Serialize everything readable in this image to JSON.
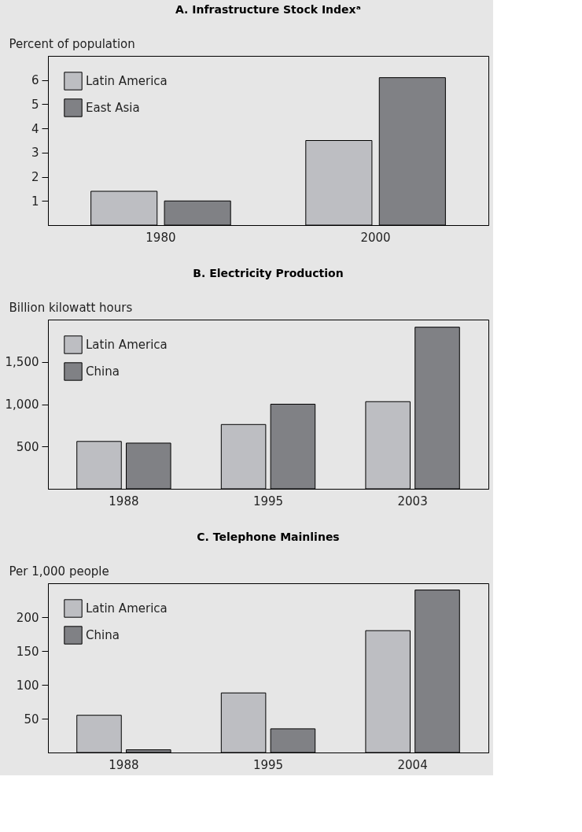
{
  "chart_data": [
    {
      "type": "bar",
      "title": "A. Infrastructure Stock Indexᵃ",
      "ylabel": "Percent of population",
      "categories": [
        "1980",
        "2000"
      ],
      "series": [
        {
          "name": "Latin America",
          "color": "#bdbec2",
          "values": [
            1.4,
            3.5
          ]
        },
        {
          "name": "East Asia",
          "color": "#808185",
          "values": [
            1.0,
            6.1
          ]
        }
      ],
      "ylim": [
        0,
        7
      ],
      "yticks": [
        1,
        2,
        3,
        4,
        5,
        6
      ],
      "legend": "top left",
      "grid": false
    },
    {
      "type": "bar",
      "title": "B. Electricity Production",
      "ylabel": "Billion kilowatt hours",
      "categories": [
        "1988",
        "1995",
        "2003"
      ],
      "series": [
        {
          "name": "Latin America",
          "color": "#bdbec2",
          "values": [
            560,
            760,
            1030
          ]
        },
        {
          "name": "China",
          "color": "#808185",
          "values": [
            540,
            1000,
            1910
          ]
        }
      ],
      "ylim": [
        0,
        2000
      ],
      "yticks": [
        {
          "value": 500,
          "label": "500"
        },
        {
          "value": 1000,
          "label": "1,000"
        },
        {
          "value": 1500,
          "label": "1,500"
        }
      ],
      "legend": "top left",
      "grid": false
    },
    {
      "type": "bar",
      "title": "C. Telephone Mainlines",
      "ylabel": "Per 1,000 people",
      "categories": [
        "1988",
        "1995",
        "2004"
      ],
      "series": [
        {
          "name": "Latin America",
          "color": "#bdbec2",
          "values": [
            55,
            88,
            180
          ]
        },
        {
          "name": "China",
          "color": "#808185",
          "values": [
            4,
            35,
            240
          ]
        }
      ],
      "ylim": [
        0,
        250
      ],
      "yticks": [
        50,
        100,
        150,
        200
      ],
      "legend": "top left",
      "grid": false
    }
  ]
}
